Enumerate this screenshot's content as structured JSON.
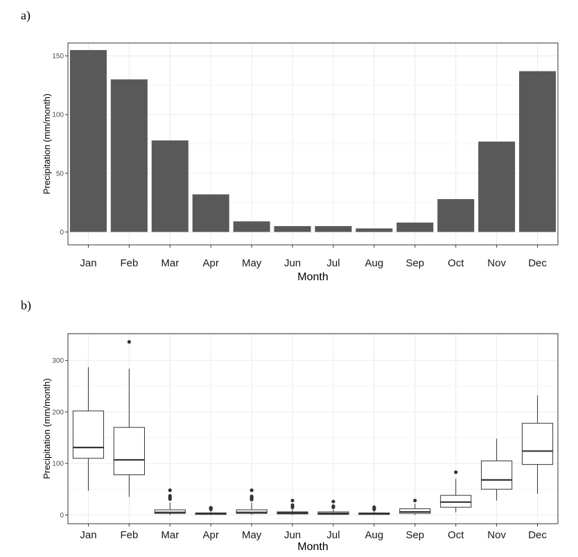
{
  "chart_data": [
    {
      "panel": "a)",
      "type": "bar",
      "xlabel": "Month",
      "ylabel": "Precipitation (mm/month)",
      "ylim": [
        -11,
        161
      ],
      "yticks": [
        0,
        50,
        100,
        150
      ],
      "grid": true,
      "categories": [
        "Jan",
        "Feb",
        "Mar",
        "Apr",
        "May",
        "Jun",
        "Jul",
        "Aug",
        "Sep",
        "Oct",
        "Nov",
        "Dec"
      ],
      "values": [
        155,
        130,
        78,
        32,
        9,
        5,
        5,
        3,
        8,
        28,
        77,
        137
      ],
      "colors": {
        "bar": "#595959",
        "grid": "#ebebeb",
        "frame": "#333333"
      }
    },
    {
      "panel": "b)",
      "type": "box",
      "xlabel": "Month",
      "ylabel": "Precipitation (mm/month)",
      "ylim": [
        -17,
        352
      ],
      "yticks": [
        0,
        100,
        200,
        300
      ],
      "grid": true,
      "categories": [
        "Jan",
        "Feb",
        "Mar",
        "Apr",
        "May",
        "Jun",
        "Jul",
        "Aug",
        "Sep",
        "Oct",
        "Nov",
        "Dec"
      ],
      "boxes": [
        {
          "min": 47,
          "q1": 110,
          "median": 131,
          "q3": 202,
          "max": 287,
          "outliers": []
        },
        {
          "min": 35,
          "q1": 78,
          "median": 107,
          "q3": 170,
          "max": 284,
          "outliers": [
            336
          ]
        },
        {
          "min": 0,
          "q1": 3,
          "median": 5,
          "q3": 10,
          "max": 24,
          "outliers": [
            31,
            34,
            37,
            48
          ]
        },
        {
          "min": 0,
          "q1": 1,
          "median": 3,
          "q3": 4,
          "max": 9,
          "outliers": [
            11,
            13,
            14
          ]
        },
        {
          "min": 0,
          "q1": 3,
          "median": 5,
          "q3": 10,
          "max": 24,
          "outliers": [
            30,
            33,
            36,
            48
          ]
        },
        {
          "min": 0,
          "q1": 2,
          "median": 4,
          "q3": 6,
          "max": 12,
          "outliers": [
            15,
            19,
            28
          ]
        },
        {
          "min": 0,
          "q1": 1,
          "median": 3,
          "q3": 6,
          "max": 11,
          "outliers": [
            15,
            17,
            26
          ]
        },
        {
          "min": 0,
          "q1": 1,
          "median": 2,
          "q3": 4,
          "max": 8,
          "outliers": [
            11,
            13,
            15
          ]
        },
        {
          "min": 0,
          "q1": 3,
          "median": 6,
          "q3": 12,
          "max": 22,
          "outliers": [
            28
          ]
        },
        {
          "min": 5,
          "q1": 15,
          "median": 25,
          "q3": 38,
          "max": 70,
          "outliers": [
            83
          ]
        },
        {
          "min": 28,
          "q1": 50,
          "median": 68,
          "q3": 105,
          "max": 148,
          "outliers": []
        },
        {
          "min": 41,
          "q1": 98,
          "median": 124,
          "q3": 178,
          "max": 232,
          "outliers": []
        }
      ],
      "colors": {
        "box": "#ffffff",
        "line": "#333333",
        "point": "#333333",
        "grid": "#ebebeb",
        "frame": "#333333"
      }
    }
  ]
}
